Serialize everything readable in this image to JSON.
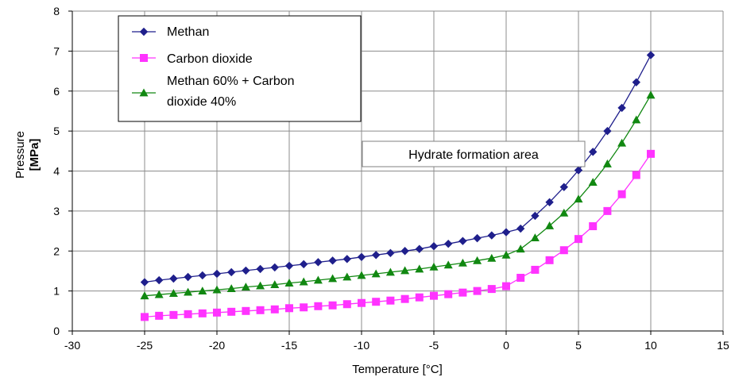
{
  "chart_data": {
    "type": "line",
    "title": "",
    "xlabel": "Temperature [°C]",
    "ylabel": [
      "Pressure",
      "[MPa]"
    ],
    "xlim": [
      -30,
      15
    ],
    "ylim": [
      0,
      8
    ],
    "x_ticks": [
      -30,
      -25,
      -20,
      -15,
      -10,
      -5,
      0,
      5,
      10,
      15
    ],
    "y_ticks": [
      0,
      1,
      2,
      3,
      4,
      5,
      6,
      7,
      8
    ],
    "grid": true,
    "legend": "top-left",
    "annotation": "Hydrate formation area",
    "x": [
      -25,
      -24,
      -23,
      -22,
      -21,
      -20,
      -19,
      -18,
      -17,
      -16,
      -15,
      -14,
      -13,
      -12,
      -11,
      -10,
      -9,
      -8,
      -7,
      -6,
      -5,
      -4,
      -3,
      -2,
      -1,
      0,
      1,
      2,
      3,
      4,
      5,
      6,
      7,
      8,
      9,
      10
    ],
    "series": [
      {
        "name": "Methan",
        "color": "#1f1f8c",
        "marker": "diamond",
        "values": [
          1.22,
          1.27,
          1.31,
          1.35,
          1.39,
          1.43,
          1.47,
          1.51,
          1.55,
          1.59,
          1.63,
          1.67,
          1.72,
          1.76,
          1.8,
          1.85,
          1.9,
          1.95,
          2.0,
          2.05,
          2.12,
          2.18,
          2.25,
          2.32,
          2.39,
          2.47,
          2.56,
          2.88,
          3.22,
          3.6,
          4.02,
          4.48,
          5.0,
          5.58,
          6.22,
          6.9
        ]
      },
      {
        "name": "Carbon dioxide",
        "color": "#ff33ff",
        "marker": "square",
        "values": [
          0.35,
          0.38,
          0.4,
          0.42,
          0.44,
          0.46,
          0.48,
          0.5,
          0.52,
          0.54,
          0.57,
          0.59,
          0.62,
          0.64,
          0.67,
          0.7,
          0.73,
          0.76,
          0.8,
          0.84,
          0.88,
          0.92,
          0.96,
          1.0,
          1.05,
          1.12,
          1.33,
          1.53,
          1.77,
          2.02,
          2.3,
          2.62,
          3.0,
          3.42,
          3.9,
          4.43
        ]
      },
      {
        "name": "Methan 60% + Carbon dioxide 40%",
        "legend_lines": [
          "Methan 60% + Carbon",
          "dioxide 40%"
        ],
        "color": "#118811",
        "marker": "triangle",
        "values": [
          0.88,
          0.91,
          0.94,
          0.97,
          1.0,
          1.03,
          1.06,
          1.1,
          1.13,
          1.16,
          1.2,
          1.23,
          1.27,
          1.31,
          1.35,
          1.39,
          1.43,
          1.47,
          1.51,
          1.55,
          1.6,
          1.65,
          1.7,
          1.76,
          1.82,
          1.9,
          2.05,
          2.33,
          2.63,
          2.95,
          3.3,
          3.72,
          4.18,
          4.7,
          5.28,
          5.9
        ]
      }
    ]
  }
}
